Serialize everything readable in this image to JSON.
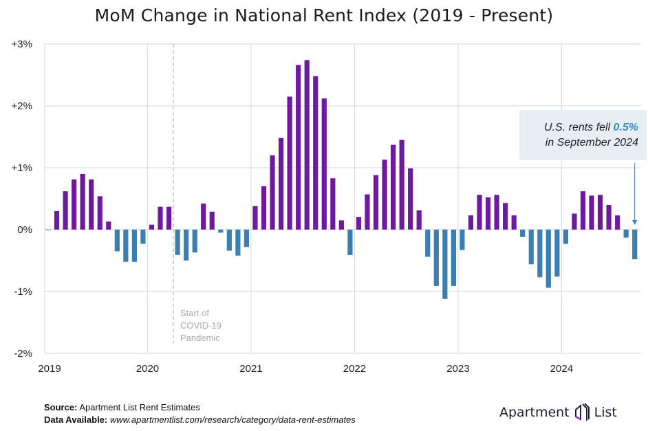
{
  "chart_data": {
    "type": "bar",
    "title": "MoM Change in National Rent Index (2019 - Present)",
    "xlabel": "",
    "ylabel": "",
    "ylim": [
      -2,
      3
    ],
    "yticks": [
      "+3%",
      "+2%",
      "+1%",
      "0%",
      "-1%",
      "-2%"
    ],
    "ytick_values": [
      3,
      2,
      1,
      0,
      -1,
      -2
    ],
    "xticks": [
      "2019",
      "2020",
      "2021",
      "2022",
      "2023",
      "2024"
    ],
    "grid": true,
    "start": "2019-01",
    "frequency": "monthly",
    "values": [
      -0.01,
      0.3,
      0.62,
      0.81,
      0.9,
      0.81,
      0.54,
      0.13,
      -0.35,
      -0.52,
      -0.52,
      -0.23,
      0.08,
      0.37,
      0.37,
      -0.41,
      -0.5,
      -0.37,
      0.42,
      0.29,
      -0.05,
      -0.34,
      -0.42,
      -0.28,
      0.38,
      0.7,
      1.2,
      1.48,
      2.15,
      2.66,
      2.74,
      2.48,
      2.12,
      0.83,
      0.15,
      -0.41,
      0.2,
      0.57,
      0.88,
      1.13,
      1.37,
      1.45,
      0.99,
      0.31,
      -0.44,
      -0.91,
      -1.12,
      -0.91,
      -0.33,
      0.23,
      0.56,
      0.52,
      0.56,
      0.43,
      0.23,
      -0.12,
      -0.56,
      -0.77,
      -0.94,
      -0.76,
      -0.23,
      0.26,
      0.62,
      0.55,
      0.56,
      0.4,
      0.23,
      -0.13,
      -0.48
    ],
    "colors": {
      "positive": "#6e1aa0",
      "negative": "#3a7fb0"
    },
    "covid_marker": {
      "label_lines": [
        "Start of",
        "COVID-19",
        "Pandemic"
      ]
    },
    "annotation": {
      "line1_prefix": "U.S. rents fell ",
      "line1_value": "0.5%",
      "line2": "in September 2024"
    }
  },
  "footer": {
    "source_label": "Source:",
    "source_text": "Apartment List Rent Estimates",
    "data_label": "Data Available:",
    "data_text": "www.apartmentlist.com/research/category/data-rent-estimates"
  },
  "logo": {
    "left": "Apartment",
    "right": "List"
  }
}
